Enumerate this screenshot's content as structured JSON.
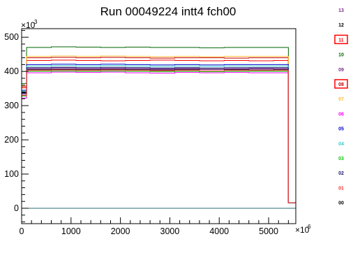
{
  "chart_data": {
    "type": "line",
    "title": "Run 00049224 intt4 fch00",
    "xlabel": "",
    "ylabel": "",
    "x_multiplier": "×10",
    "x_multiplier_exp": "6",
    "y_multiplier": "×10",
    "y_multiplier_exp": "3",
    "xlim": [
      0,
      5550
    ],
    "ylim": [
      -45,
      525
    ],
    "x_ticks": [
      0,
      1000,
      2000,
      3000,
      4000,
      5000
    ],
    "x_tick_labels": [
      "0",
      "1000",
      "2000",
      "3000",
      "4000",
      "5000"
    ],
    "y_ticks": [
      0,
      100,
      200,
      300,
      400,
      500
    ],
    "y_tick_labels": [
      "0",
      "100",
      "200",
      "300",
      "400",
      "500"
    ],
    "grid": false,
    "legend_placement": "right",
    "series": [
      {
        "name": "13",
        "color": "#7b2d8b",
        "values": [
          333,
          410,
          411,
          410,
          409,
          410,
          408,
          409,
          407,
          408,
          409,
          410,
          16
        ]
      },
      {
        "name": "12",
        "color": "#000000",
        "values": [
          338,
          405,
          406,
          405,
          406,
          405,
          404,
          405,
          406,
          405,
          404,
          405,
          16
        ]
      },
      {
        "name": "11",
        "color": "#ff0000",
        "values": [
          352,
          432,
          433,
          432,
          431,
          432,
          433,
          432,
          431,
          432,
          431,
          432,
          16
        ]
      },
      {
        "name": "10",
        "color": "#006400",
        "values": [
          365,
          470,
          472,
          471,
          470,
          471,
          470,
          470,
          469,
          470,
          470,
          470,
          16
        ]
      },
      {
        "name": "09",
        "color": "#7b2d8b",
        "values": [
          340,
          407,
          408,
          407,
          408,
          407,
          406,
          407,
          406,
          407,
          407,
          407,
          16
        ]
      },
      {
        "name": "08",
        "color": "#c00000",
        "values": [
          356,
          440,
          441,
          440,
          441,
          440,
          439,
          440,
          440,
          439,
          440,
          440,
          16
        ]
      },
      {
        "name": "07",
        "color": "#ffbb33",
        "values": [
          358,
          444,
          445,
          444,
          445,
          444,
          443,
          444,
          443,
          444,
          444,
          444,
          16
        ]
      },
      {
        "name": "06",
        "color": "#ff00ff",
        "values": [
          322,
          396,
          398,
          397,
          398,
          396,
          395,
          397,
          396,
          397,
          396,
          396,
          16
        ]
      },
      {
        "name": "05",
        "color": "#0000cc",
        "values": [
          345,
          420,
          421,
          420,
          421,
          420,
          419,
          420,
          419,
          420,
          420,
          420,
          16
        ]
      },
      {
        "name": "04",
        "color": "#33cccc",
        "values": [
          343,
          416,
          417,
          416,
          417,
          416,
          415,
          416,
          415,
          416,
          416,
          416,
          16
        ]
      },
      {
        "name": "03",
        "color": "#00cc00",
        "values": [
          328,
          400,
          401,
          400,
          401,
          400,
          399,
          400,
          399,
          400,
          400,
          400,
          16
        ]
      },
      {
        "name": "02",
        "color": "#1a1a6e",
        "values": [
          336,
          411,
          412,
          411,
          412,
          411,
          410,
          411,
          410,
          411,
          411,
          411,
          16
        ]
      },
      {
        "name": "01",
        "color": "#ff3333",
        "values": [
          330,
          403,
          404,
          403,
          404,
          403,
          402,
          403,
          402,
          403,
          403,
          403,
          16
        ]
      },
      {
        "name": "00",
        "color": "#000000",
        "values": [
          0,
          0,
          0,
          0,
          0,
          0,
          0,
          0,
          0,
          0,
          0,
          0,
          0
        ]
      }
    ],
    "x": [
      0,
      100,
      600,
      1100,
      1600,
      2100,
      2600,
      3100,
      3600,
      4100,
      4600,
      5100,
      5400
    ],
    "x_end": 5550
  },
  "legend": {
    "highlighted": [
      "11",
      "08"
    ]
  },
  "colors": {
    "zero_line": "#2a6b6b",
    "highlight_box": "#ff0000"
  }
}
